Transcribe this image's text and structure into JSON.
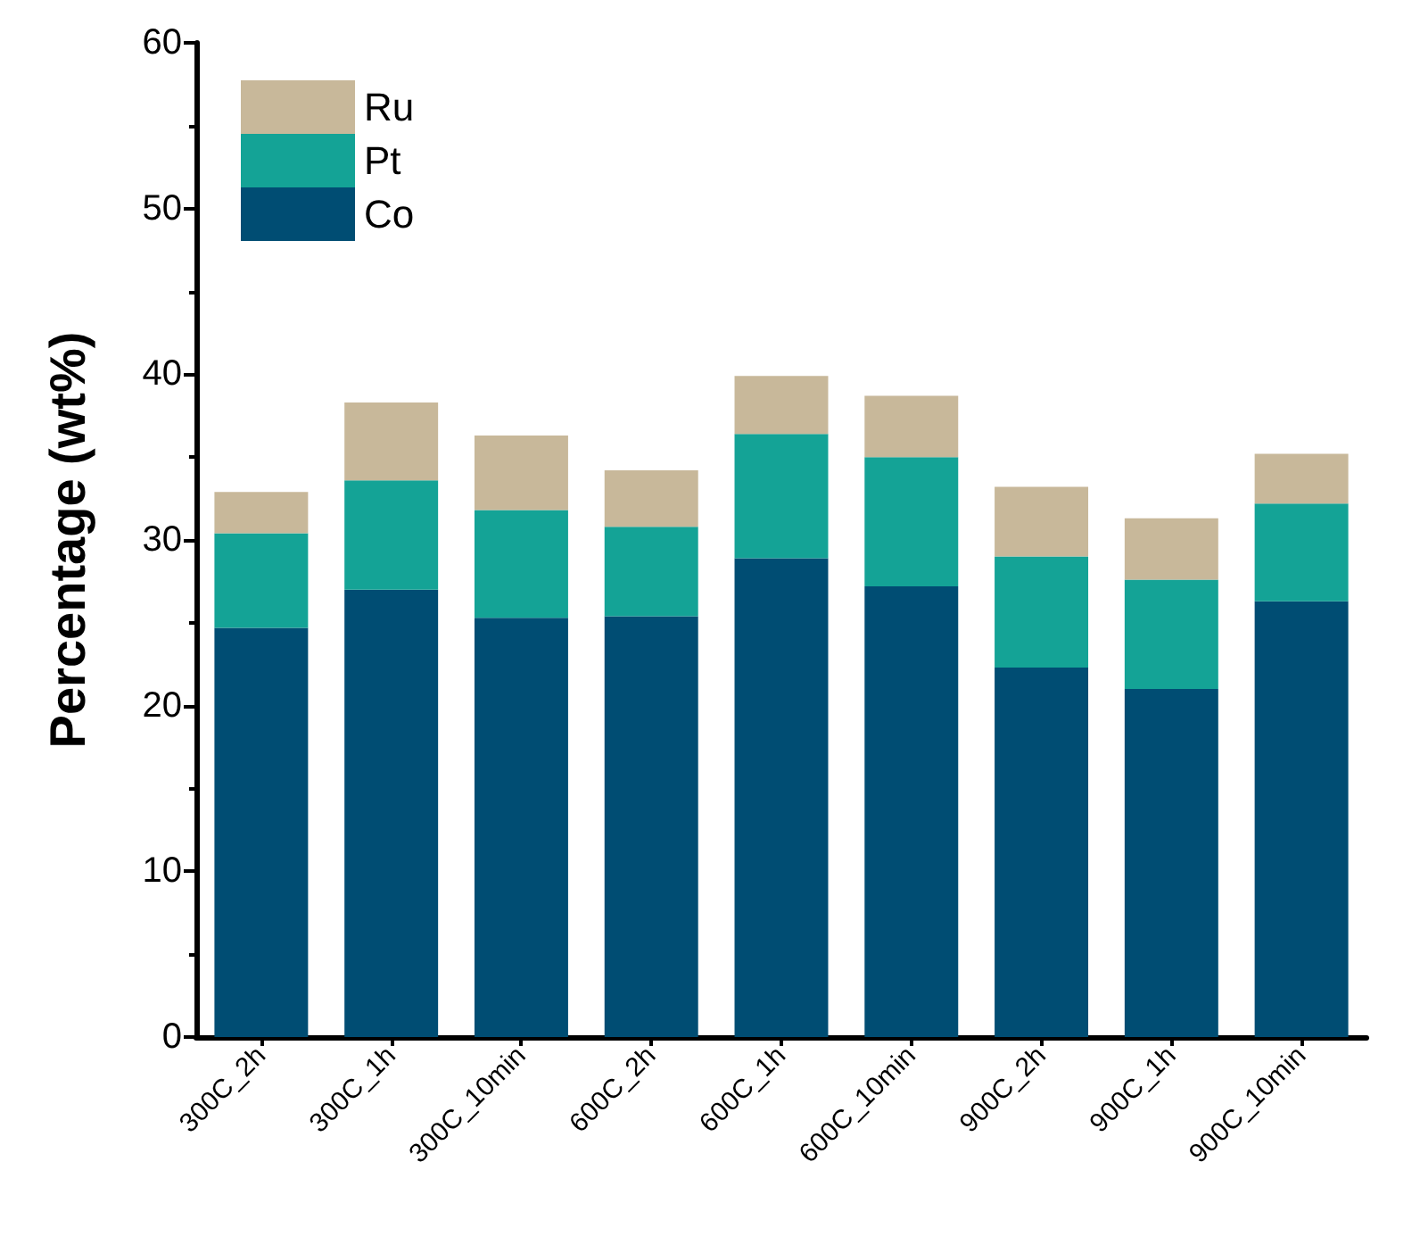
{
  "chart_data": {
    "type": "bar",
    "stacked": true,
    "ylabel": "Percentage (wt%)",
    "categories": [
      "300C_2h",
      "300C_1h",
      "300C_10min",
      "600C_2h",
      "600C_1h",
      "600C_10min",
      "900C_2h",
      "900C_1h",
      "900C_10min"
    ],
    "series": [
      {
        "name": "Co",
        "color": "#004d73",
        "values": [
          24.7,
          27.0,
          25.3,
          25.4,
          28.9,
          27.2,
          22.3,
          21.0,
          26.3
        ]
      },
      {
        "name": "Pt",
        "color": "#14a396",
        "values": [
          5.7,
          6.6,
          6.5,
          5.4,
          7.5,
          7.8,
          6.7,
          6.6,
          5.9
        ]
      },
      {
        "name": "Ru",
        "color": "#c8b89a",
        "values": [
          2.5,
          4.7,
          4.5,
          3.4,
          3.5,
          3.7,
          4.2,
          3.7,
          3.0
        ]
      }
    ],
    "ylim": [
      0,
      60
    ],
    "yticks": [
      0,
      10,
      20,
      30,
      40,
      50,
      60
    ],
    "grid": false,
    "legend": "top left"
  }
}
